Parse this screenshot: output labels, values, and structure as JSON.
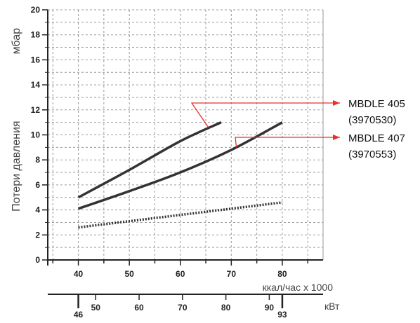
{
  "chart_data": {
    "type": "line",
    "ylabel": "Потери давления",
    "yunit": "мбар",
    "ylim": [
      0,
      20
    ],
    "yticks": [
      0,
      2,
      4,
      6,
      8,
      10,
      12,
      14,
      16,
      18,
      20
    ],
    "xlim": [
      34,
      88
    ],
    "xticks": [
      40,
      50,
      60,
      70,
      80
    ],
    "xlabel": "ккал/час х 1000",
    "x2label": "кВт",
    "x2ticks": [
      46,
      50,
      60,
      70,
      80,
      90,
      93
    ],
    "grid": true,
    "series": [
      {
        "name": "MBDLE 405 (3970530)",
        "style": "solid",
        "x": [
          40,
          50,
          60,
          68
        ],
        "y": [
          5.0,
          7.2,
          9.5,
          11.0
        ]
      },
      {
        "name": "MBDLE 407 (3970553)",
        "style": "solid",
        "x": [
          40,
          50,
          60,
          70,
          80
        ],
        "y": [
          4.1,
          5.5,
          7.0,
          8.8,
          11.0
        ]
      },
      {
        "name": "",
        "style": "dotted",
        "x": [
          40,
          80
        ],
        "y": [
          2.6,
          4.6
        ]
      }
    ],
    "annotations": [
      {
        "line1": "MBDLE 405",
        "line2": "(3970530)",
        "series": 0
      },
      {
        "line1": "MBDLE 407",
        "line2": "(3970553)",
        "series": 1
      }
    ],
    "colors": {
      "curve": "#333333",
      "grid": "#9a9a9a",
      "arrow": "#e8302a",
      "axis": "#222222"
    }
  }
}
